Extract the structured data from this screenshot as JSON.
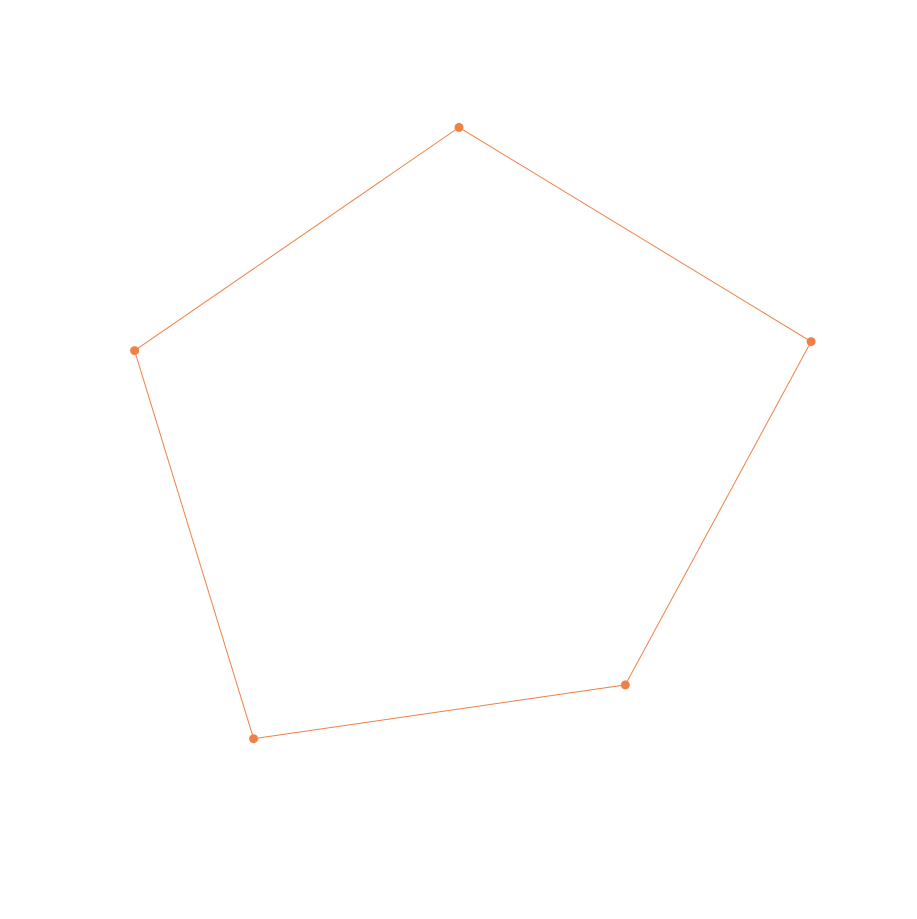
{
  "chart_data": {
    "type": "radar",
    "axes_count": 5,
    "rotation_deg": 0,
    "radial_range": [
      0,
      1
    ],
    "grid": false,
    "axis_labels_visible": false,
    "legend": "none",
    "series": [
      {
        "values": [
          0.79,
          0.89,
          0.68,
          0.84,
          0.82
        ],
        "color": "#ee8146"
      }
    ]
  }
}
